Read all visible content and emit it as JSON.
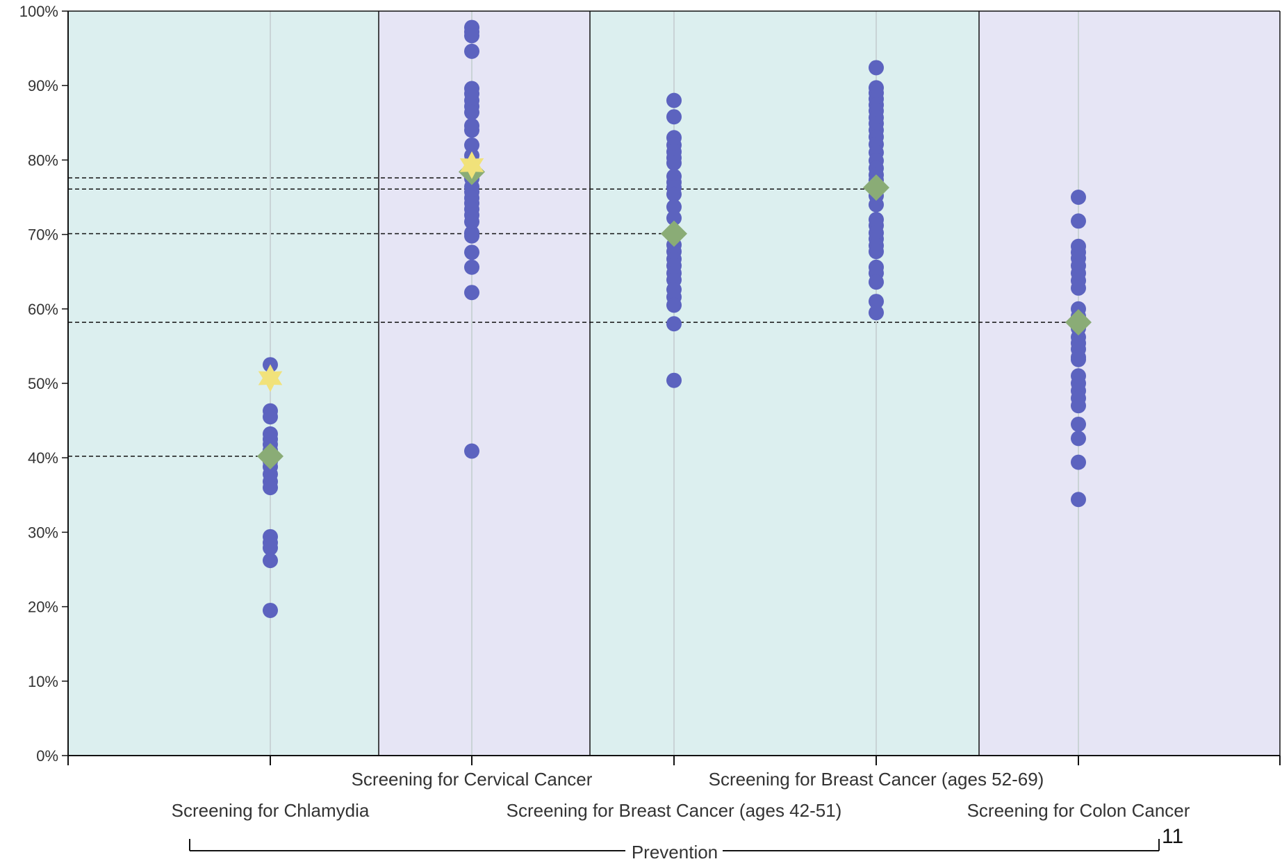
{
  "chart_data": {
    "type": "scatter",
    "y_axis": {
      "ylim": [
        0,
        100
      ],
      "ticks": [
        0,
        10,
        20,
        30,
        40,
        50,
        60,
        70,
        80,
        90,
        100
      ],
      "tick_labels": [
        "0%",
        "10%",
        "20%",
        "30%",
        "40%",
        "50%",
        "60%",
        "70%",
        "80%",
        "90%",
        "100%"
      ]
    },
    "categories": [
      "Screening for Chlamydia",
      "Screening for Cervical Cancer",
      "Screening for Breast Cancer (ages 42-51)",
      "Screening for Breast Cancer (ages 52-69)",
      "Screening for Colon Cancer"
    ],
    "category_group": "Prevention",
    "panel_colors": [
      "#dcefef",
      "#e6e5f5",
      "#dcefef",
      "#dcefef",
      "#e6e5f5"
    ],
    "colors": {
      "point": "#5c63bf",
      "star": "#f1e27a",
      "diamond": "#8aac76"
    },
    "series": [
      {
        "marker": "circle",
        "values": [
          [
            52.5,
            46.3,
            45.5,
            43.2,
            42.5,
            41.8,
            41.0,
            40.3,
            39.5,
            38.8,
            37.8,
            36.8,
            36.0,
            29.4,
            28.6,
            27.9,
            26.2,
            19.5
          ],
          [
            97.8,
            97.2,
            96.7,
            94.6,
            89.6,
            88.9,
            88.0,
            87.2,
            86.4,
            84.6,
            84.0,
            82.0,
            80.6,
            79.8,
            78.3,
            77.5,
            76.4,
            75.7,
            74.9,
            74.2,
            73.4,
            72.6,
            71.7,
            70.2,
            69.8,
            67.6,
            65.6,
            62.2,
            40.9
          ],
          [
            88.0,
            85.8,
            83.0,
            82.0,
            81.1,
            80.3,
            79.6,
            77.8,
            77.0,
            76.3,
            75.4,
            73.7,
            72.2,
            70.0,
            68.6,
            67.7,
            66.7,
            65.8,
            64.8,
            63.9,
            62.6,
            61.6,
            60.5,
            58.0,
            50.4
          ],
          [
            92.4,
            89.7,
            89.0,
            88.2,
            87.4,
            86.6,
            85.7,
            84.9,
            84.0,
            83.1,
            82.1,
            81.0,
            79.9,
            78.9,
            78.0,
            77.3,
            76.4,
            75.2,
            74.0,
            72.0,
            71.2,
            70.2,
            69.4,
            68.5,
            67.7,
            65.6,
            64.8,
            63.6,
            61.0,
            59.5
          ],
          [
            75.0,
            71.8,
            68.4,
            67.6,
            66.8,
            65.8,
            64.8,
            63.8,
            62.8,
            60.0,
            59.0,
            57.4,
            56.2,
            55.4,
            54.6,
            53.5,
            53.2,
            51.0,
            50.0,
            49.0,
            48.0,
            47.0,
            44.5,
            42.6,
            39.4,
            34.4
          ]
        ]
      },
      {
        "marker": "star",
        "values": [
          50.7,
          79.3,
          null,
          null,
          null
        ]
      },
      {
        "marker": "diamond",
        "values": [
          40.2,
          78.4,
          70.1,
          76.3,
          58.2
        ]
      }
    ],
    "reference_lines": [
      77.6,
      76.1,
      70.1,
      58.2,
      40.2
    ]
  },
  "page_number": "11"
}
